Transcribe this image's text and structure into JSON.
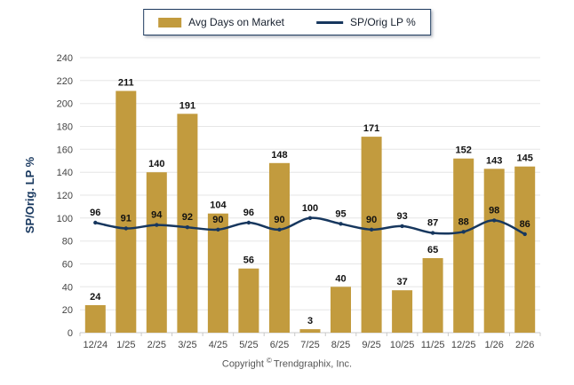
{
  "legend": {
    "bar_label": "Avg Days on Market",
    "line_label": "SP/Orig LP %"
  },
  "footer": {
    "copyright_prefix": "Copyright",
    "copyright_symbol": "©",
    "copyright_suffix": "Trendgraphix, Inc."
  },
  "colors": {
    "bar": "#C29B3E",
    "line": "#17375E",
    "grid": "#E6E6E6",
    "baseline": "#C9C9C9",
    "tick": "#C9C9C9",
    "value_label": "#111111",
    "axis_text": "#444444",
    "axis_title": "#17375E",
    "legend_border": "#1E3A5F",
    "copyright": "#555555"
  },
  "chart_data": {
    "type": "bar",
    "title": "",
    "xlabel": "",
    "ylabel": "SP/Orig. LP %",
    "ylim": [
      0,
      240
    ],
    "ytick_step": 20,
    "grid": true,
    "legend_position": "top",
    "value_labels": true,
    "categories": [
      "12/24",
      "1/25",
      "2/25",
      "3/25",
      "4/25",
      "5/25",
      "6/25",
      "7/25",
      "8/25",
      "9/25",
      "10/25",
      "11/25",
      "12/25",
      "1/26",
      "2/26"
    ],
    "series": [
      {
        "name": "Avg Days on Market",
        "type": "bar",
        "color": "#C29B3E",
        "values": [
          24,
          211,
          140,
          191,
          104,
          56,
          148,
          3,
          40,
          171,
          37,
          65,
          152,
          143,
          145
        ]
      },
      {
        "name": "SP/Orig LP %",
        "type": "line",
        "color": "#17375E",
        "values": [
          96,
          91,
          94,
          92,
          90,
          96,
          90,
          100,
          95,
          90,
          93,
          87,
          88,
          98,
          86
        ]
      }
    ]
  }
}
